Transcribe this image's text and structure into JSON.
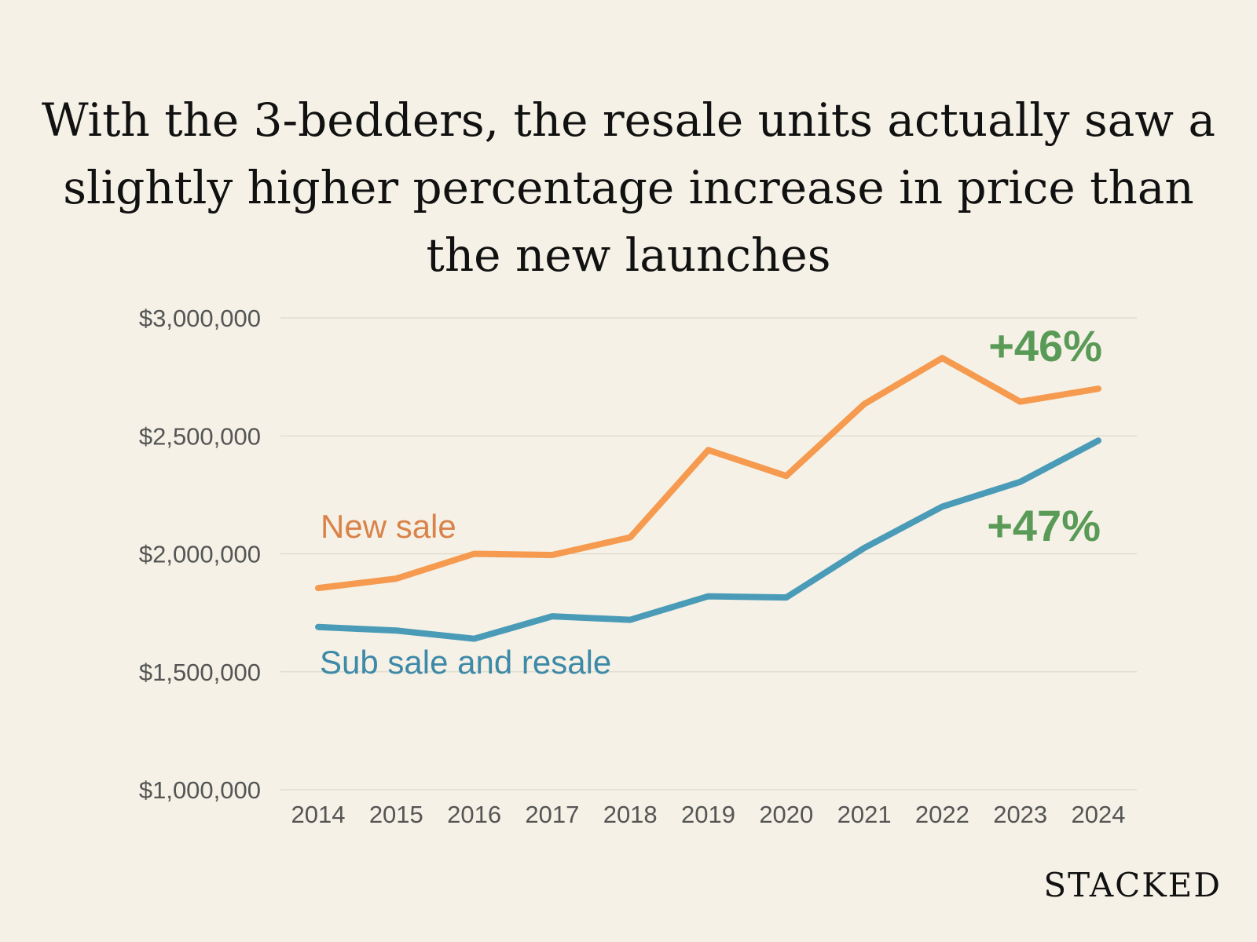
{
  "title_lines": [
    "With the 3-bedders, the resale units actually saw a",
    "slightly higher percentage increase in price than",
    "the new launches"
  ],
  "brand": "STACKED",
  "colors": {
    "background": "#f5f1e6",
    "new_sale_line": "#f59a4f",
    "new_sale_label": "#d9824a",
    "resale_line": "#4a9bb7",
    "resale_label": "#3d89a8",
    "annotation": "#5a9a57",
    "grid": "#ddd8cc"
  },
  "chart_data": {
    "type": "line",
    "x": [
      "2014",
      "2015",
      "2016",
      "2017",
      "2018",
      "2019",
      "2020",
      "2021",
      "2022",
      "2023",
      "2024"
    ],
    "ylim": [
      1000000,
      3000000
    ],
    "yticks": [
      1000000,
      1500000,
      2000000,
      2500000,
      3000000
    ],
    "ytick_labels": [
      "$1,000,000",
      "$1,500,000",
      "$2,000,000",
      "$2,500,000",
      "$3,000,000"
    ],
    "grid": "horizontal",
    "series": [
      {
        "name": "New sale",
        "color": "#f59a4f",
        "values": [
          1855000,
          1895000,
          2000000,
          1995000,
          2070000,
          2440000,
          2330000,
          2635000,
          2830000,
          2645000,
          2700000
        ]
      },
      {
        "name": "Sub sale and resale",
        "color": "#4a9bb7",
        "values": [
          1690000,
          1675000,
          1640000,
          1735000,
          1720000,
          1820000,
          1815000,
          2025000,
          2200000,
          2305000,
          2480000
        ]
      }
    ],
    "annotations": [
      {
        "text": "+46%",
        "series": "New sale"
      },
      {
        "text": "+47%",
        "series": "Sub sale and resale"
      }
    ]
  }
}
